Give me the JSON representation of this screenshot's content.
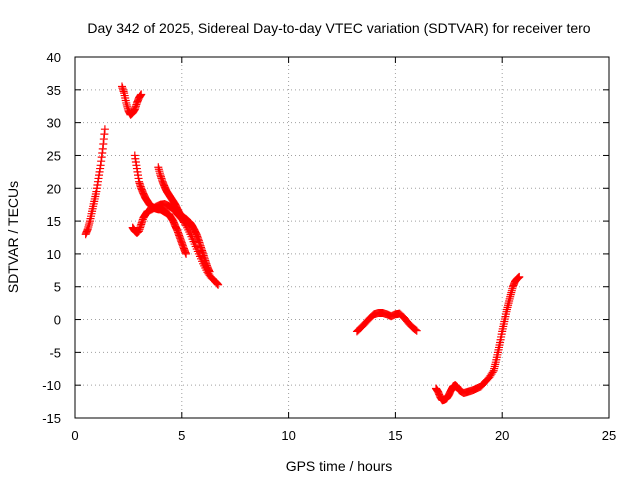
{
  "chart_data": {
    "type": "scatter",
    "title": "Day 342 of 2025, Sidereal Day-to-day VTEC variation (SDTVAR) for receiver tero",
    "xlabel": "GPS time / hours",
    "ylabel": "SDTVAR / TECUs",
    "xlim": [
      0,
      25
    ],
    "ylim": [
      -15,
      40
    ],
    "xticks": [
      0,
      5,
      10,
      15,
      20,
      25
    ],
    "yticks": [
      -15,
      -10,
      -5,
      0,
      5,
      10,
      15,
      20,
      25,
      30,
      35,
      40
    ],
    "grid": true,
    "marker": "plus",
    "color": "#ff0000",
    "segments": [
      {
        "x": [
          0.5,
          0.6,
          0.7,
          0.8,
          0.9,
          1.0,
          1.1,
          1.2,
          1.3,
          1.4
        ],
        "y": [
          13,
          13.8,
          15,
          16.5,
          18,
          19.5,
          21.5,
          23.5,
          26,
          29
        ]
      },
      {
        "x": [
          2.2,
          2.3,
          2.4,
          2.5,
          2.6,
          2.7,
          2.8,
          2.9,
          3.0,
          3.1
        ],
        "y": [
          35.5,
          34.5,
          33,
          31.8,
          31.2,
          31.5,
          32,
          33,
          33.8,
          34.3
        ]
      },
      {
        "x": [
          2.7,
          2.8,
          2.9,
          3.0,
          3.1,
          3.2,
          3.3,
          3.4,
          3.6,
          3.8,
          4.0,
          4.2,
          4.4,
          4.6,
          4.8,
          5.0,
          5.2,
          5.4,
          5.6,
          5.8,
          6.0,
          6.2,
          6.4,
          6.6,
          6.7
        ],
        "y": [
          14,
          13.5,
          13.2,
          13.5,
          14.5,
          15.5,
          16,
          16.5,
          16.8,
          17.2,
          17.5,
          17.6,
          17.3,
          16.8,
          16,
          15.3,
          14.3,
          13,
          11.5,
          10,
          8.5,
          7.2,
          6.3,
          5.7,
          5.3
        ]
      },
      {
        "x": [
          2.8,
          2.9,
          3.0,
          3.1,
          3.2,
          3.3,
          3.4,
          3.5,
          3.6,
          3.7,
          3.8,
          3.9,
          4.0,
          4.1,
          4.2,
          4.3,
          4.4,
          4.5,
          4.6,
          4.7,
          4.8,
          4.9,
          5.0,
          5.1,
          5.2
        ],
        "y": [
          25,
          23,
          21,
          20,
          19.2,
          18.5,
          18,
          17.5,
          17.2,
          17,
          16.9,
          16.8,
          16.8,
          16.6,
          16.4,
          16.2,
          16,
          15.5,
          15,
          14.2,
          13.5,
          12.6,
          11.7,
          10.8,
          10
        ]
      },
      {
        "x": [
          3.9,
          4.0,
          4.1,
          4.2,
          4.3,
          4.4,
          4.5,
          4.6,
          4.7,
          4.8,
          4.9,
          5.0,
          5.1,
          5.2,
          5.3,
          5.4,
          5.5,
          5.6,
          5.7,
          5.8,
          5.9,
          6.0,
          6.1,
          6.2,
          6.3
        ],
        "y": [
          23.2,
          22,
          21,
          20.2,
          19.5,
          19,
          18.5,
          18,
          17.5,
          16.8,
          16.2,
          15.8,
          15.5,
          15.3,
          15,
          14.7,
          14.2,
          13.6,
          12.9,
          12,
          11,
          10,
          9,
          8,
          7.3
        ]
      },
      {
        "x": [
          13.2,
          13.4,
          13.6,
          13.8,
          14.0,
          14.2,
          14.4,
          14.6,
          14.8,
          15.0,
          15.2,
          15.4,
          15.6,
          15.8,
          16.0
        ],
        "y": [
          -1.8,
          -1.2,
          -0.5,
          0.2,
          0.8,
          1.0,
          1.0,
          0.8,
          0.5,
          0.8,
          0.9,
          0.3,
          -0.5,
          -1.2,
          -1.7
        ]
      },
      {
        "x": [
          16.9,
          17.0,
          17.1,
          17.2,
          17.3,
          17.4,
          17.5,
          17.6,
          17.7,
          17.8,
          17.9,
          18.0,
          18.2,
          18.4,
          18.6,
          18.8,
          19.0,
          19.2,
          19.4,
          19.6,
          19.7,
          19.8,
          19.9,
          20.0,
          20.1,
          20.2,
          20.3,
          20.4,
          20.5,
          20.6,
          20.7,
          20.8
        ],
        "y": [
          -10.5,
          -11,
          -11.8,
          -12.3,
          -12.2,
          -12,
          -11.5,
          -10.8,
          -10.2,
          -10,
          -10.3,
          -10.8,
          -11.2,
          -11,
          -10.8,
          -10.5,
          -10.2,
          -9.5,
          -8.8,
          -7.8,
          -6.5,
          -5,
          -3.5,
          -1.8,
          -0.3,
          1.2,
          2.5,
          3.8,
          5,
          5.8,
          6.2,
          6.5
        ]
      }
    ]
  }
}
